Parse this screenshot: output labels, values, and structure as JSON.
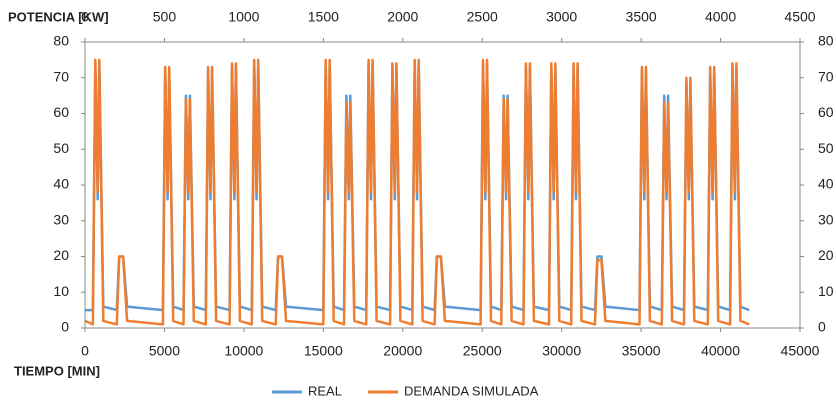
{
  "chart_data": {
    "type": "line",
    "x_label": "TIEMPO [MIN]",
    "y_label": "POTENCIA [KW]",
    "x": [
      0,
      500,
      650,
      800,
      900,
      1150,
      2000,
      2150,
      2300,
      2400,
      2650,
      4900,
      5050,
      5200,
      5300,
      5550,
      6200,
      6350,
      6500,
      6600,
      6850,
      7600,
      7750,
      7900,
      8000,
      8250,
      9100,
      9250,
      9400,
      9500,
      9750,
      10500,
      10650,
      10800,
      10900,
      11150,
      12000,
      12150,
      12300,
      12400,
      12650,
      15000,
      15150,
      15300,
      15400,
      15650,
      16300,
      16450,
      16600,
      16700,
      16950,
      17700,
      17850,
      18000,
      18100,
      18350,
      19200,
      19350,
      19500,
      19600,
      19850,
      20600,
      20750,
      20900,
      21000,
      21250,
      22000,
      22150,
      22300,
      22400,
      22650,
      24900,
      25050,
      25200,
      25300,
      25550,
      26200,
      26350,
      26500,
      26600,
      26850,
      27600,
      27750,
      27900,
      28000,
      28250,
      29200,
      29350,
      29500,
      29600,
      29850,
      30600,
      30750,
      30900,
      31000,
      31250,
      32100,
      32250,
      32400,
      32500,
      32750,
      34900,
      35050,
      35200,
      35300,
      35550,
      36300,
      36450,
      36600,
      36700,
      36950,
      37700,
      37850,
      38000,
      38100,
      38350,
      39200,
      39350,
      39500,
      39600,
      39850,
      40600,
      40750,
      40900,
      41000,
      41250,
      41800
    ],
    "series": [
      {
        "name": "REAL",
        "color": "#5b9bd5",
        "values": [
          5,
          5,
          74,
          36,
          74,
          6,
          5,
          20,
          20,
          20,
          6,
          5,
          72,
          36,
          72,
          6,
          5,
          65,
          36,
          65,
          6,
          5,
          72,
          36,
          72,
          6,
          5,
          73,
          36,
          73,
          6,
          5,
          74,
          36,
          74,
          6,
          5,
          20,
          20,
          20,
          6,
          5,
          74,
          36,
          74,
          6,
          5,
          65,
          36,
          65,
          6,
          5,
          74,
          36,
          74,
          6,
          5,
          73,
          36,
          73,
          6,
          5,
          74,
          36,
          74,
          6,
          5,
          20,
          20,
          20,
          6,
          5,
          74,
          36,
          74,
          6,
          5,
          65,
          36,
          65,
          6,
          5,
          73,
          36,
          73,
          6,
          5,
          73,
          36,
          73,
          6,
          5,
          73,
          36,
          73,
          6,
          5,
          20,
          20,
          20,
          6,
          5,
          72,
          36,
          72,
          6,
          5,
          65,
          36,
          65,
          6,
          5,
          68,
          36,
          68,
          6,
          5,
          72,
          36,
          72,
          6,
          5,
          73,
          36,
          73,
          6,
          5
        ]
      },
      {
        "name": "DEMANDA SIMULADA",
        "color": "#ed7d31",
        "values": [
          2,
          1,
          75,
          38,
          75,
          2,
          1,
          20,
          20,
          20,
          2,
          1,
          73,
          38,
          73,
          2,
          1,
          64,
          38,
          64,
          2,
          1,
          73,
          38,
          73,
          2,
          1,
          74,
          38,
          74,
          2,
          1,
          75,
          38,
          75,
          2,
          1,
          20,
          20,
          20,
          2,
          1,
          75,
          38,
          75,
          2,
          1,
          63,
          38,
          63,
          2,
          1,
          75,
          38,
          75,
          2,
          1,
          74,
          38,
          74,
          2,
          1,
          75,
          38,
          75,
          2,
          1,
          20,
          20,
          20,
          2,
          1,
          75,
          38,
          75,
          2,
          1,
          64,
          38,
          64,
          2,
          1,
          74,
          38,
          74,
          2,
          1,
          74,
          38,
          74,
          2,
          1,
          74,
          38,
          74,
          2,
          1,
          19,
          19,
          19,
          2,
          1,
          73,
          38,
          73,
          2,
          1,
          63,
          38,
          63,
          2,
          1,
          70,
          38,
          70,
          2,
          1,
          73,
          38,
          73,
          2,
          1,
          74,
          38,
          74,
          2,
          1
        ]
      }
    ],
    "xlim": [
      0,
      45000
    ],
    "xticks": [
      0,
      5000,
      10000,
      15000,
      20000,
      25000,
      30000,
      35000,
      40000,
      45000
    ],
    "x2lim": [
      0,
      4500
    ],
    "x2ticks": [
      0,
      500,
      1000,
      1500,
      2000,
      2500,
      3000,
      3500,
      4000,
      4500
    ],
    "ylim": [
      0,
      80
    ],
    "yticks": [
      0,
      10,
      20,
      30,
      40,
      50,
      60,
      70,
      80
    ],
    "y2lim": [
      0,
      80
    ],
    "y2ticks": [
      0,
      10,
      20,
      30,
      40,
      50,
      60,
      70,
      80
    ],
    "legend": "bottom"
  }
}
